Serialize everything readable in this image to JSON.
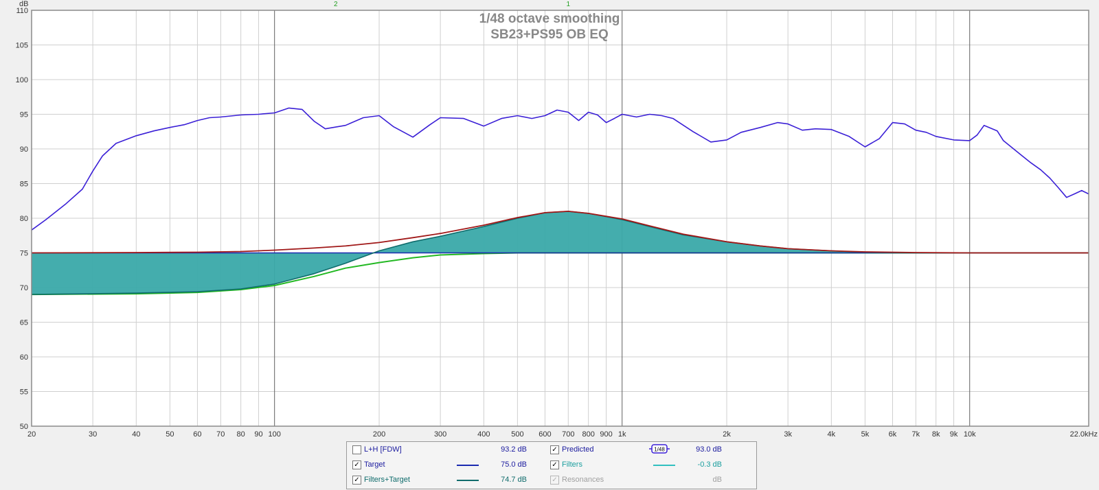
{
  "chart_data": {
    "type": "line",
    "title": "1/48 octave smoothing",
    "subtitle": "SB23+PS95 OB EQ",
    "y_unit_label": "dB",
    "x_unit_label": "kHz",
    "xscale": "log",
    "xlim": [
      20,
      22000
    ],
    "ylim": [
      50,
      110
    ],
    "grid": true,
    "y_ticks": [
      "110",
      "105",
      "100",
      "95",
      "90",
      "85",
      "80",
      "75",
      "70",
      "65",
      "60",
      "55",
      "50"
    ],
    "x_ticks": [
      {
        "v": 20,
        "label": "20"
      },
      {
        "v": 30,
        "label": "30"
      },
      {
        "v": 40,
        "label": "40"
      },
      {
        "v": 50,
        "label": "50"
      },
      {
        "v": 60,
        "label": "60"
      },
      {
        "v": 70,
        "label": "70"
      },
      {
        "v": 80,
        "label": "80"
      },
      {
        "v": 90,
        "label": "90"
      },
      {
        "v": 100,
        "label": "100"
      },
      {
        "v": 200,
        "label": "200"
      },
      {
        "v": 300,
        "label": "300"
      },
      {
        "v": 400,
        "label": "400"
      },
      {
        "v": 500,
        "label": "500"
      },
      {
        "v": 600,
        "label": "600"
      },
      {
        "v": 700,
        "label": "700"
      },
      {
        "v": 800,
        "label": "800"
      },
      {
        "v": 900,
        "label": "900"
      },
      {
        "v": 1000,
        "label": "1k"
      },
      {
        "v": 2000,
        "label": "2k"
      },
      {
        "v": 3000,
        "label": "3k"
      },
      {
        "v": 4000,
        "label": "4k"
      },
      {
        "v": 5000,
        "label": "5k"
      },
      {
        "v": 6000,
        "label": "6k"
      },
      {
        "v": 7000,
        "label": "7k"
      },
      {
        "v": 8000,
        "label": "8k"
      },
      {
        "v": 9000,
        "label": "9k"
      },
      {
        "v": 10000,
        "label": "10k"
      },
      {
        "v": 22000,
        "label": "22.0kHz"
      }
    ],
    "filter_markers": [
      {
        "label": "2",
        "x": 150
      },
      {
        "label": "1",
        "x": 700
      }
    ],
    "series": [
      {
        "key": "predicted",
        "color": "#3a1fd6",
        "x": [
          20,
          22,
          25,
          28,
          30,
          32,
          35,
          40,
          45,
          50,
          55,
          60,
          65,
          70,
          80,
          90,
          100,
          110,
          120,
          130,
          140,
          160,
          180,
          200,
          220,
          250,
          280,
          300,
          350,
          400,
          450,
          500,
          550,
          600,
          650,
          700,
          750,
          800,
          850,
          900,
          950,
          1000,
          1100,
          1200,
          1300,
          1400,
          1600,
          1800,
          2000,
          2200,
          2500,
          2800,
          3000,
          3300,
          3600,
          4000,
          4500,
          5000,
          5500,
          6000,
          6500,
          7000,
          7500,
          8000,
          9000,
          10000,
          10500,
          11000,
          12000,
          12500,
          13000,
          14000,
          15000,
          16000,
          17000,
          18000,
          19000,
          20000,
          21000,
          22000
        ],
        "y": [
          78.3,
          79.8,
          82.0,
          84.2,
          86.8,
          89.0,
          90.8,
          91.9,
          92.6,
          93.1,
          93.5,
          94.1,
          94.5,
          94.6,
          94.9,
          95.0,
          95.2,
          95.9,
          95.7,
          94.0,
          92.9,
          93.4,
          94.5,
          94.8,
          93.2,
          91.7,
          93.5,
          94.5,
          94.4,
          93.3,
          94.4,
          94.8,
          94.4,
          94.8,
          95.6,
          95.3,
          94.1,
          95.3,
          94.9,
          93.8,
          94.4,
          95.0,
          94.6,
          95.0,
          94.8,
          94.4,
          92.5,
          91.0,
          91.3,
          92.4,
          93.1,
          93.8,
          93.6,
          92.7,
          92.9,
          92.8,
          91.8,
          90.3,
          91.5,
          93.8,
          93.6,
          92.7,
          92.4,
          91.8,
          91.3,
          91.2,
          92.0,
          93.4,
          92.6,
          91.2,
          90.5,
          89.2,
          88.0,
          87.0,
          85.8,
          84.4,
          83.0,
          83.5,
          84.0,
          83.5
        ]
      },
      {
        "key": "filters_target_upper",
        "color": "#a01818",
        "x": [
          20,
          40,
          60,
          80,
          100,
          130,
          160,
          200,
          250,
          300,
          400,
          500,
          600,
          700,
          800,
          1000,
          1200,
          1500,
          2000,
          2500,
          3000,
          4000,
          5000,
          7000,
          10000,
          22000
        ],
        "y": [
          75.0,
          75.05,
          75.1,
          75.2,
          75.4,
          75.7,
          76.0,
          76.5,
          77.2,
          77.8,
          79.0,
          80.1,
          80.8,
          81.0,
          80.7,
          79.9,
          78.9,
          77.7,
          76.6,
          76.0,
          75.6,
          75.3,
          75.15,
          75.05,
          75.0,
          75.0
        ]
      },
      {
        "key": "filters_target",
        "color": "#0f6c6c",
        "fill": "#3aa9a9",
        "x": [
          20,
          40,
          60,
          80,
          100,
          130,
          160,
          200,
          250,
          300,
          400,
          500,
          600,
          700,
          800,
          1000,
          1200,
          1500,
          2000,
          2500,
          3000,
          4000,
          5000,
          7000,
          10000,
          22000
        ],
        "y": [
          69.0,
          69.2,
          69.4,
          69.8,
          70.5,
          72.0,
          73.5,
          75.3,
          76.6,
          77.4,
          78.8,
          80.0,
          80.8,
          81.0,
          80.7,
          79.8,
          78.8,
          77.6,
          76.6,
          76.0,
          75.6,
          75.3,
          75.1,
          75.0,
          75.0,
          75.0
        ]
      },
      {
        "key": "target",
        "color": "#1a2ab0",
        "x": [
          20,
          22000
        ],
        "y": [
          75.0,
          75.0
        ]
      },
      {
        "key": "green",
        "color": "#22b822",
        "x": [
          20,
          40,
          60,
          80,
          100,
          130,
          160,
          200,
          250,
          300,
          400,
          500,
          700,
          1000,
          2000,
          22000
        ],
        "y": [
          69.0,
          69.1,
          69.3,
          69.7,
          70.3,
          71.6,
          72.8,
          73.6,
          74.3,
          74.7,
          74.9,
          75.0,
          75.0,
          75.0,
          75.0,
          75.0
        ]
      }
    ]
  },
  "legend": {
    "lh_label": "L+H [FDW]",
    "lh_value": "93.2 dB",
    "predicted_label": "Predicted",
    "predicted_value": "93.0 dB",
    "smoothing_icon_label": "1/48",
    "target_label": "Target",
    "target_value": "75.0 dB",
    "filters_label": "Filters",
    "filters_value": "-0.3 dB",
    "ft_label": "Filters+Target",
    "ft_value": "74.7 dB",
    "resonances_label": "Resonances",
    "resonances_value": "dB",
    "check_mark": "✓",
    "colors": {
      "target": "#1a2ab0",
      "ft": "#0f6c6c",
      "filters": "#30c0c0",
      "predicted": "#3a1fd6"
    }
  }
}
